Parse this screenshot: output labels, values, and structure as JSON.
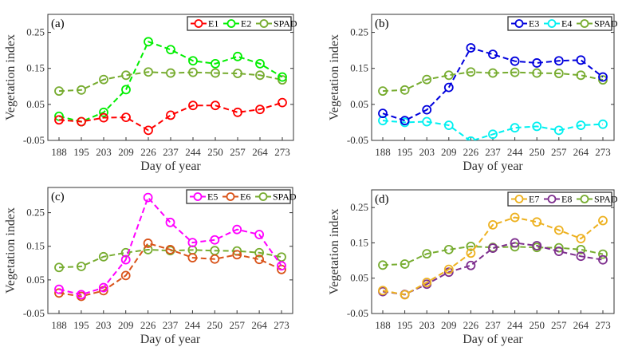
{
  "chart_data": [
    {
      "type": "line",
      "panel_label": "(a)",
      "xlabel": "Day of year",
      "ylabel": "Vegetation index",
      "categories": [
        "188",
        "195",
        "203",
        "209",
        "226",
        "237",
        "244",
        "250",
        "257",
        "264",
        "273"
      ],
      "ylim": [
        -0.05,
        0.3
      ],
      "yticks": [
        "0.25",
        "0.15",
        "0.05",
        "-0.05"
      ],
      "legend_position": "top-right",
      "series": [
        {
          "name": "E1",
          "color": "#ff0000",
          "values": [
            0.007,
            0.002,
            0.013,
            0.014,
            -0.022,
            0.02,
            0.047,
            0.047,
            0.028,
            0.036,
            0.055
          ]
        },
        {
          "name": "E2",
          "color": "#00ee00",
          "values": [
            0.017,
            0.002,
            0.028,
            0.091,
            0.224,
            0.202,
            0.171,
            0.163,
            0.183,
            0.163,
            0.126
          ]
        },
        {
          "name": "SPAD",
          "color": "#77ac30",
          "values": [
            0.087,
            0.09,
            0.119,
            0.131,
            0.14,
            0.137,
            0.139,
            0.137,
            0.136,
            0.131,
            0.118
          ]
        }
      ]
    },
    {
      "type": "line",
      "panel_label": "(b)",
      "xlabel": "Day of year",
      "ylabel": "Vegetation index",
      "categories": [
        "188",
        "195",
        "203",
        "209",
        "226",
        "237",
        "244",
        "250",
        "257",
        "264",
        "273"
      ],
      "ylim": [
        -0.05,
        0.3
      ],
      "yticks": [
        "0.25",
        "0.15",
        "0.05",
        "-0.05"
      ],
      "legend_position": "top-right",
      "series": [
        {
          "name": "E3",
          "color": "#0000dd",
          "values": [
            0.025,
            0.005,
            0.035,
            0.097,
            0.207,
            0.189,
            0.17,
            0.165,
            0.171,
            0.173,
            0.126
          ]
        },
        {
          "name": "E4",
          "color": "#00f0f0",
          "values": [
            0.005,
            0.0,
            0.002,
            -0.008,
            -0.052,
            -0.033,
            -0.015,
            -0.011,
            -0.022,
            -0.008,
            -0.005
          ]
        },
        {
          "name": "SPAD",
          "color": "#77ac30",
          "values": [
            0.087,
            0.09,
            0.119,
            0.131,
            0.14,
            0.137,
            0.139,
            0.137,
            0.136,
            0.131,
            0.118
          ]
        }
      ]
    },
    {
      "type": "line",
      "panel_label": "(c)",
      "xlabel": "Day of year",
      "ylabel": "Vegetation index",
      "categories": [
        "188",
        "195",
        "203",
        "209",
        "226",
        "237",
        "244",
        "250",
        "257",
        "264",
        "273"
      ],
      "ylim": [
        -0.05,
        0.325
      ],
      "yticks": [
        "0.25",
        "0.15",
        "0.05",
        "-0.05"
      ],
      "legend_position": "top-right",
      "series": [
        {
          "name": "E5",
          "color": "#ff00ff",
          "values": [
            0.022,
            0.006,
            0.027,
            0.11,
            0.295,
            0.221,
            0.161,
            0.169,
            0.2,
            0.185,
            0.092
          ]
        },
        {
          "name": "E6",
          "color": "#d95319",
          "values": [
            0.011,
            0.001,
            0.018,
            0.063,
            0.159,
            0.14,
            0.116,
            0.112,
            0.125,
            0.111,
            0.081
          ]
        },
        {
          "name": "SPAD",
          "color": "#77ac30",
          "values": [
            0.087,
            0.09,
            0.119,
            0.131,
            0.14,
            0.137,
            0.139,
            0.137,
            0.136,
            0.131,
            0.118
          ]
        }
      ]
    },
    {
      "type": "line",
      "panel_label": "(d)",
      "xlabel": "Day of year",
      "ylabel": "Vegetation index",
      "categories": [
        "188",
        "195",
        "203",
        "209",
        "226",
        "237",
        "244",
        "250",
        "257",
        "264",
        "273"
      ],
      "ylim": [
        -0.05,
        0.3
      ],
      "yticks": [
        "0.25",
        "0.15",
        "0.05",
        "-0.05"
      ],
      "legend_position": "top-right",
      "series": [
        {
          "name": "E7",
          "color": "#edb120",
          "values": [
            0.015,
            0.003,
            0.038,
            0.075,
            0.121,
            0.201,
            0.222,
            0.209,
            0.186,
            0.162,
            0.213
          ]
        },
        {
          "name": "E8",
          "color": "#7e2f8e",
          "values": [
            0.012,
            0.004,
            0.033,
            0.067,
            0.086,
            0.135,
            0.15,
            0.142,
            0.126,
            0.112,
            0.102
          ]
        },
        {
          "name": "SPAD",
          "color": "#77ac30",
          "values": [
            0.087,
            0.09,
            0.119,
            0.131,
            0.14,
            0.137,
            0.139,
            0.137,
            0.136,
            0.131,
            0.118
          ]
        }
      ]
    }
  ]
}
